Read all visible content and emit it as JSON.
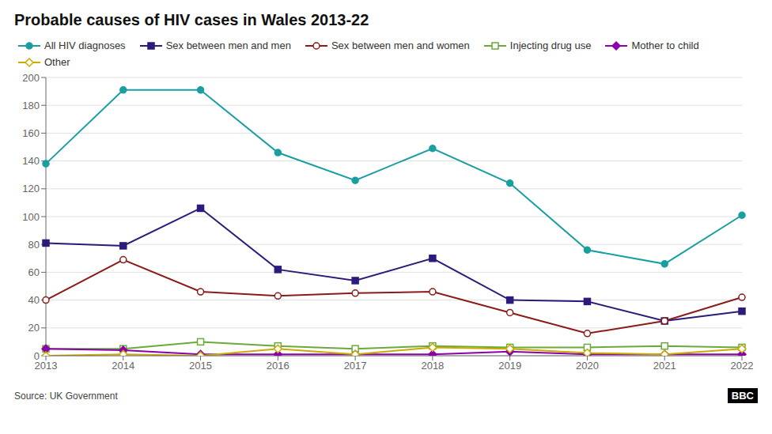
{
  "chart_data": {
    "type": "line",
    "title": "Probable causes of HIV cases in Wales 2013-22",
    "annotations": [
      "Source: UK Government",
      "BBC"
    ],
    "categories": [
      "2013",
      "2014",
      "2015",
      "2016",
      "2017",
      "2018",
      "2019",
      "2020",
      "2021",
      "2022"
    ],
    "series": [
      {
        "name": "All HIV diagnoses",
        "color": "#1a9ea0",
        "marker": "circle",
        "values": [
          138,
          191,
          191,
          146,
          126,
          149,
          124,
          76,
          66,
          101
        ]
      },
      {
        "name": "Sex between men and men",
        "color": "#2e1a7a",
        "marker": "square",
        "values": [
          81,
          79,
          106,
          62,
          54,
          70,
          40,
          39,
          25,
          32
        ]
      },
      {
        "name": "Sex between men and women",
        "color": "#8b1a1a",
        "marker": "open_circle",
        "values": [
          40,
          69,
          46,
          43,
          45,
          46,
          31,
          16,
          25,
          42
        ]
      },
      {
        "name": "Injecting drug use",
        "color": "#6aaa3a",
        "marker": "open_square",
        "values": [
          5,
          5,
          10,
          7,
          5,
          7,
          6,
          6,
          7,
          6
        ]
      },
      {
        "name": "Mother to child",
        "color": "#8b00aa",
        "marker": "diamond",
        "values": [
          5,
          4,
          1,
          1,
          1,
          1,
          3,
          1,
          1,
          1
        ]
      },
      {
        "name": "Other",
        "color": "#ccaa00",
        "marker": "open_diamond",
        "values": [
          0,
          1,
          0,
          5,
          1,
          6,
          5,
          2,
          1,
          5
        ]
      }
    ],
    "ylim": [
      0,
      200
    ],
    "yticks": [
      0,
      20,
      40,
      60,
      80,
      100,
      120,
      140,
      160,
      180,
      200
    ],
    "grid": true,
    "legend": "top-left"
  }
}
